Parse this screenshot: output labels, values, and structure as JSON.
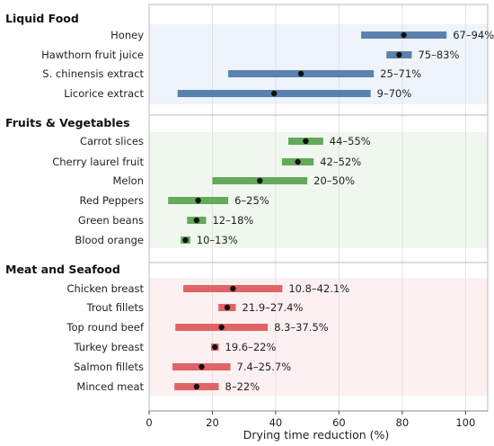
{
  "chart_data": {
    "type": "range-bar",
    "xlabel": "Drying time reduction (%)",
    "xlim": [
      0,
      107
    ],
    "x_ticks": [
      0,
      20,
      40,
      60,
      80,
      100
    ],
    "grid": "vertical",
    "groups": [
      {
        "name": "Liquid Food",
        "color": "#5a82b0",
        "band_color": "#eef4fa",
        "items": [
          {
            "label": "Honey",
            "min": 67,
            "max": 94,
            "mean": 80.5,
            "range_label": "67–94%"
          },
          {
            "label": "Hawthorn fruit juice",
            "min": 75,
            "max": 83,
            "mean": 79,
            "range_label": "75–83%"
          },
          {
            "label": "S. chinensis extract",
            "min": 25,
            "max": 71,
            "mean": 48,
            "range_label": "25–71%"
          },
          {
            "label": "Licorice extract",
            "min": 9,
            "max": 70,
            "mean": 39.5,
            "range_label": "9–70%"
          }
        ]
      },
      {
        "name": "Fruits & Vegetables",
        "color": "#63aa5c",
        "band_color": "#f0f7ee",
        "items": [
          {
            "label": "Carrot slices",
            "min": 44,
            "max": 55,
            "mean": 49.5,
            "range_label": "44–55%"
          },
          {
            "label": "Cherry laurel fruit",
            "min": 42,
            "max": 52,
            "mean": 47,
            "range_label": "42–52%"
          },
          {
            "label": "Melon",
            "min": 20,
            "max": 50,
            "mean": 35,
            "range_label": "20–50%"
          },
          {
            "label": "Red Peppers",
            "min": 6,
            "max": 25,
            "mean": 15.5,
            "range_label": "6–25%"
          },
          {
            "label": "Green beans",
            "min": 12,
            "max": 18,
            "mean": 15,
            "range_label": "12–18%"
          },
          {
            "label": "Blood orange",
            "min": 10,
            "max": 13,
            "mean": 11.5,
            "range_label": "10–13%"
          }
        ]
      },
      {
        "name": "Meat and Seafood",
        "color": "#e06466",
        "band_color": "#fdf0f0",
        "items": [
          {
            "label": "Chicken breast",
            "min": 10.8,
            "max": 42.1,
            "mean": 26.5,
            "range_label": "10.8–42.1%"
          },
          {
            "label": "Trout fillets",
            "min": 21.9,
            "max": 27.4,
            "mean": 24.7,
            "range_label": "21.9–27.4%"
          },
          {
            "label": "Top round beef",
            "min": 8.3,
            "max": 37.5,
            "mean": 22.9,
            "range_label": "8.3–37.5%"
          },
          {
            "label": "Turkey breast",
            "min": 19.6,
            "max": 22,
            "mean": 20.8,
            "range_label": "19.6–22%"
          },
          {
            "label": "Salmon fillets",
            "min": 7.4,
            "max": 25.7,
            "mean": 16.6,
            "range_label": "7.4–25.7%"
          },
          {
            "label": "Minced meat",
            "min": 8,
            "max": 22,
            "mean": 15,
            "range_label": "8–22%"
          }
        ]
      }
    ]
  }
}
